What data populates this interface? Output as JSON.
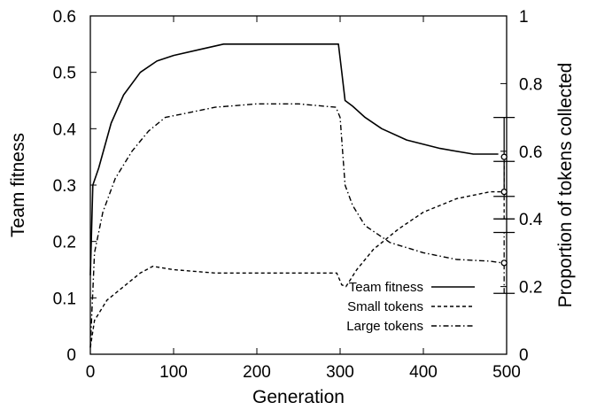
{
  "chart_data": {
    "type": "line",
    "xlabel": "Generation",
    "ylabel": "Team fitness",
    "y2label": "Proportion of tokens collected",
    "xlim": [
      0,
      500
    ],
    "ylim": [
      0,
      0.6
    ],
    "y2lim": [
      0,
      1
    ],
    "x_ticks": [
      "0",
      "100",
      "200",
      "300",
      "400",
      "500"
    ],
    "y_ticks": [
      "0",
      "0.1",
      "0.2",
      "0.3",
      "0.4",
      "0.5",
      "0.6"
    ],
    "y2_ticks": [
      "0",
      "0.2",
      "0.4",
      "0.6",
      "0.8",
      "1"
    ],
    "grid": false,
    "legend_position": "bottom-right",
    "series": [
      {
        "name": "Team fitness",
        "axis": "left",
        "style": "solid",
        "x": [
          0,
          3,
          10,
          25,
          40,
          60,
          80,
          100,
          130,
          160,
          200,
          250,
          290,
          298,
          302,
          306,
          315,
          330,
          350,
          380,
          420,
          460,
          490
        ],
        "y": [
          0.14,
          0.3,
          0.33,
          0.41,
          0.46,
          0.5,
          0.52,
          0.53,
          0.54,
          0.55,
          0.55,
          0.55,
          0.55,
          0.55,
          0.5,
          0.45,
          0.44,
          0.42,
          0.4,
          0.38,
          0.365,
          0.355,
          0.355
        ]
      },
      {
        "name": "Small tokens",
        "axis": "right",
        "style": "dashed",
        "x": [
          0,
          5,
          20,
          40,
          60,
          75,
          100,
          150,
          200,
          250,
          296,
          302,
          307,
          320,
          340,
          370,
          400,
          440,
          480,
          495
        ],
        "y": [
          0.02,
          0.1,
          0.16,
          0.2,
          0.24,
          0.26,
          0.25,
          0.24,
          0.24,
          0.24,
          0.24,
          0.205,
          0.2,
          0.25,
          0.31,
          0.37,
          0.42,
          0.46,
          0.48,
          0.48
        ]
      },
      {
        "name": "Large tokens",
        "axis": "right",
        "style": "dashdot",
        "x": [
          0,
          5,
          15,
          30,
          50,
          70,
          90,
          110,
          150,
          200,
          250,
          295,
          300,
          303,
          306,
          315,
          330,
          360,
          400,
          440,
          480,
          495
        ],
        "y": [
          0.02,
          0.3,
          0.42,
          0.52,
          0.6,
          0.66,
          0.7,
          0.71,
          0.73,
          0.74,
          0.74,
          0.73,
          0.7,
          0.6,
          0.5,
          0.44,
          0.38,
          0.33,
          0.3,
          0.28,
          0.275,
          0.27
        ]
      }
    ],
    "error_bars": [
      {
        "series": "Team fitness",
        "axis": "left",
        "x": 497,
        "center": 0.35,
        "low": 0.28,
        "high": 0.42
      },
      {
        "series": "Small tokens",
        "axis": "right",
        "x": 497,
        "center": 0.48,
        "low": 0.4,
        "high": 0.57
      },
      {
        "series": "Large tokens",
        "axis": "right",
        "x": 497,
        "center": 0.27,
        "low": 0.18,
        "high": 0.36
      }
    ]
  }
}
